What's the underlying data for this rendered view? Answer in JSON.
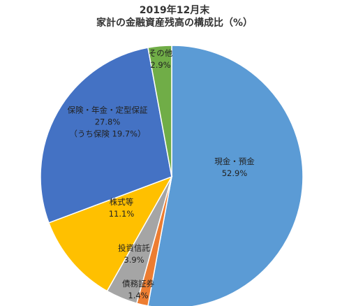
{
  "title": "2019年12月末",
  "subtitle": "家計の金融資産残高の構成比（%）",
  "chart_data": {
    "type": "pie",
    "title": "2019年12月末",
    "subtitle": "家計の金融資産残高の構成比（%）",
    "start_angle_deg": 0,
    "direction": "clockwise",
    "slices": [
      {
        "name": "現金・預金",
        "value": 52.9,
        "value_label": "52.9%",
        "color": "#5B9BD5"
      },
      {
        "name": "債務証券",
        "value": 1.4,
        "value_label": "1.4%",
        "color": "#ED7D31"
      },
      {
        "name": "投資信託",
        "value": 3.9,
        "value_label": "3.9%",
        "color": "#A5A5A5"
      },
      {
        "name": "株式等",
        "value": 11.1,
        "value_label": "11.1%",
        "color": "#FFC000"
      },
      {
        "name": "保険・年金・定型保証",
        "value": 27.8,
        "value_label": "27.8%",
        "note": "（うち保険 19.7%）",
        "color": "#4472C4"
      },
      {
        "name": "その他",
        "value": 2.9,
        "value_label": "2.9%",
        "color": "#70AD47"
      }
    ]
  }
}
